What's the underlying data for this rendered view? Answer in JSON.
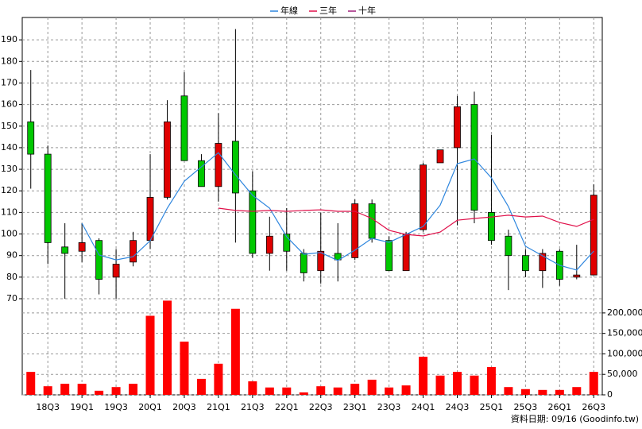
{
  "chart_data": {
    "type": "candlestick",
    "legend_position": "top",
    "grid": true,
    "note": "資料日期: 09/16 (Goodinfo.tw)",
    "categories": [
      null,
      "18Q3",
      null,
      "19Q1",
      null,
      "19Q3",
      null,
      "20Q1",
      null,
      "20Q3",
      null,
      "21Q1",
      null,
      "21Q3",
      null,
      "22Q1",
      null,
      "22Q3",
      null,
      "23Q1",
      null,
      "23Q3",
      null,
      "24Q1",
      null,
      "24Q3",
      null,
      "25Q1",
      null,
      "25Q3",
      null,
      "26Q1",
      null,
      "26Q3"
    ],
    "open": [
      152,
      137,
      94,
      92,
      97,
      80,
      87,
      97,
      117,
      164,
      134,
      122,
      143,
      120,
      91,
      100,
      91,
      83,
      91,
      89,
      114,
      97,
      83,
      102,
      133,
      140,
      160,
      110,
      99,
      90,
      83,
      92,
      80,
      81
    ],
    "high": [
      176,
      141,
      105,
      105,
      98,
      93,
      101,
      137,
      162,
      175,
      137,
      156,
      195,
      129,
      108,
      112,
      93,
      110,
      105,
      116,
      116,
      99,
      101,
      133,
      139,
      164,
      166,
      146,
      102,
      93,
      93,
      93,
      95,
      123
    ],
    "low": [
      121,
      86,
      70,
      87,
      72,
      70,
      85,
      93,
      116,
      134,
      122,
      115,
      96,
      89,
      83,
      83,
      78,
      77,
      78,
      88,
      96,
      83,
      83,
      101,
      133,
      104,
      105,
      95,
      74,
      80,
      75,
      76,
      79,
      81
    ],
    "close": [
      137,
      96,
      91,
      96,
      79,
      86,
      97,
      117,
      152,
      134,
      122,
      142,
      119,
      91,
      99,
      92,
      82,
      92,
      88,
      114,
      98,
      83,
      100,
      132,
      139,
      159,
      111,
      97,
      90,
      83,
      91,
      79,
      81,
      118
    ],
    "up_color": "#e00000",
    "down_color": "#00c800",
    "ylim": [
      70,
      200
    ],
    "yticks": [
      70,
      80,
      90,
      100,
      110,
      120,
      130,
      140,
      150,
      160,
      170,
      180,
      190
    ],
    "series": [
      {
        "name": "年線",
        "color": "#2e86de",
        "values": [
          null,
          null,
          null,
          105,
          90.3,
          88,
          89.5,
          96.9,
          112,
          124.5,
          131.1,
          137.7,
          127.4,
          117.9,
          112,
          98.7,
          90.6,
          91.4,
          87.7,
          92.5,
          98,
          96.1,
          99.8,
          103.5,
          113.4,
          132.6,
          134.8,
          126,
          112.7,
          94.3,
          89.9,
          85.5,
          83.3,
          92.1
        ]
      },
      {
        "name": "三年",
        "color": "#e0104a",
        "values": [
          null,
          null,
          null,
          null,
          null,
          null,
          null,
          null,
          null,
          null,
          null,
          112,
          110.9,
          110.5,
          110.9,
          110.5,
          110.9,
          111.2,
          110.5,
          110.5,
          107.2,
          101.7,
          99.8,
          99.1,
          100.9,
          106.4,
          107.2,
          107.9,
          108.7,
          107.9,
          108.3,
          105.3,
          103.5,
          106.8
        ]
      },
      {
        "name": "十年",
        "color": "#a0207a",
        "values": [
          null,
          null,
          null,
          null,
          null,
          null,
          null,
          null,
          null,
          null,
          null,
          null,
          null,
          null,
          null,
          null,
          null,
          null,
          null,
          null,
          null,
          null,
          null,
          null,
          null,
          null,
          null,
          null,
          null,
          null,
          null,
          null,
          null,
          null
        ]
      }
    ],
    "volume": {
      "color": "#ff0000",
      "axis": "y2",
      "values": [
        56000,
        21000,
        27000,
        27000,
        10000,
        19000,
        27000,
        193000,
        230000,
        130000,
        39000,
        76000,
        210000,
        33000,
        18000,
        18000,
        6000,
        21000,
        18000,
        27000,
        37000,
        18000,
        23000,
        93000,
        47000,
        56000,
        47000,
        68000,
        19000,
        14000,
        12000,
        12000,
        19000,
        56000
      ]
    },
    "y2lim": [
      0,
      225000
    ],
    "y2ticks": [
      {
        "value": 0,
        "label": "0"
      },
      {
        "value": 50000,
        "label": "50,000"
      },
      {
        "value": 100000,
        "label": "100,000"
      },
      {
        "value": 150000,
        "label": "150,000"
      },
      {
        "value": 200000,
        "label": "200,000"
      }
    ]
  }
}
